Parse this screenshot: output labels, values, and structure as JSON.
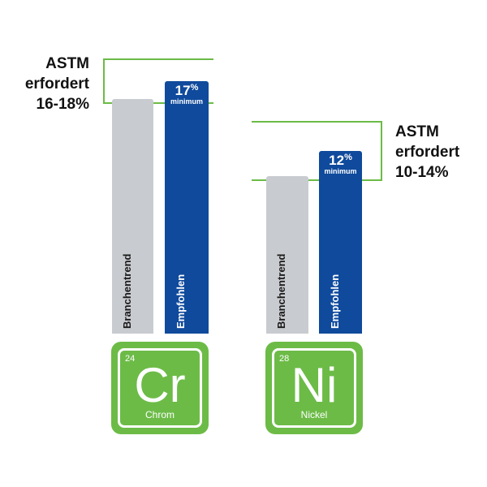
{
  "chart_data": {
    "type": "bar",
    "categories": [
      "Cr",
      "Ni"
    ],
    "series": [
      {
        "name": "Branchentrend",
        "values": [
          16.2,
          10.3
        ],
        "color": "#c8cbcf"
      },
      {
        "name": "Empfohlen",
        "values": [
          17,
          12
        ],
        "color": "#0f4a9c"
      }
    ],
    "groups": [
      {
        "astm_lines": [
          "ASTM",
          "erfordert",
          "16-18%"
        ],
        "astm_range": [
          16,
          18
        ],
        "recommended_value": "17",
        "unit": "%",
        "minimum_label": "minimum",
        "element": {
          "number": "24",
          "symbol": "Cr",
          "name": "Chrom"
        }
      },
      {
        "astm_lines": [
          "ASTM",
          "erfordert",
          "10-14%"
        ],
        "astm_range": [
          10,
          14
        ],
        "recommended_value": "12",
        "unit": "%",
        "minimum_label": "minimum",
        "element": {
          "number": "28",
          "symbol": "Ni",
          "name": "Nickel"
        }
      }
    ],
    "bar_labels": [
      "Branchentrend",
      "Empfohlen"
    ],
    "accent_color": "#6cbb47"
  }
}
